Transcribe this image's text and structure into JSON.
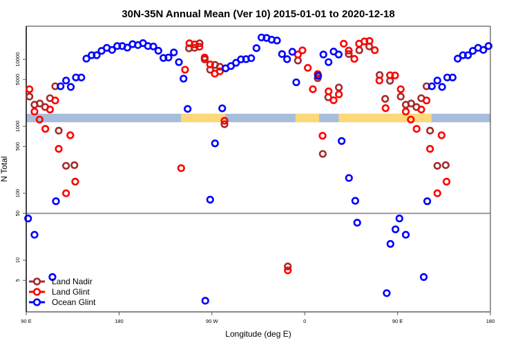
{
  "chart_data": {
    "type": "scatter",
    "title": "30N-35N Annual Mean (Ver 10)   2015-01-01 to 2020-12-18",
    "xlabel": "Longitude (deg E)",
    "ylabel": "N Total",
    "x_scale": "longitude, wrapping from 90 E eastward through 180 to 180 (450 degrees shown)",
    "xlim_deg_east_unwrapped": [
      90,
      540
    ],
    "x_ticks": [
      {
        "value": 90,
        "label": "90 E"
      },
      {
        "value": 180,
        "label": "180"
      },
      {
        "value": 270,
        "label": "90 W"
      },
      {
        "value": 360,
        "label": "0"
      },
      {
        "value": 450,
        "label": "90 E"
      },
      {
        "value": 540,
        "label": "180"
      }
    ],
    "y_scale": "log",
    "ylim": [
      1.69,
      31260
    ],
    "y_ticks": [
      {
        "value": 5,
        "label": "5"
      },
      {
        "value": 10,
        "label": "10"
      },
      {
        "value": 50,
        "label": "50"
      },
      {
        "value": 100,
        "label": "100"
      },
      {
        "value": 500,
        "label": "500"
      },
      {
        "value": 1000,
        "label": "1000"
      },
      {
        "value": 5000,
        "label": "5000"
      },
      {
        "value": 10000,
        "label": "10000"
      }
    ],
    "reference_line_y": 50,
    "grid": false,
    "legend_position": "bottom-left",
    "land_sea_strip": {
      "y_range": [
        1150,
        1540
      ],
      "ocean_color": "#a6bddb",
      "land_color": "#fdd878",
      "land_segments_lon": [
        [
          -120,
          -77
        ],
        [
          -9,
          14
        ],
        [
          33,
          123
        ]
      ]
    },
    "series": [
      {
        "name": "Land Nadir",
        "color": "#a52a2a",
        "points": [
          [
            93.1,
            2780
          ],
          [
            98.0,
            2100
          ],
          [
            103.2,
            2190
          ],
          [
            108.3,
            1940
          ],
          [
            113.0,
            2630
          ],
          [
            118.1,
            3960
          ],
          [
            121.5,
            861
          ],
          [
            128.6,
            257
          ],
          [
            136.7,
            263
          ],
          [
            -112.2,
            14620
          ],
          [
            -106.8,
            14860
          ],
          [
            -101.9,
            17390
          ],
          [
            -97.0,
            10000
          ],
          [
            -91.7,
            7000
          ],
          [
            -87.0,
            8270
          ],
          [
            -82.3,
            7760
          ],
          [
            -77.8,
            1074
          ],
          [
            -16.4,
            8.07
          ],
          [
            -6.6,
            9600
          ],
          [
            12.6,
            5230
          ],
          [
            17.5,
            387
          ],
          [
            22.8,
            2710
          ],
          [
            33.1,
            3800
          ],
          [
            42.7,
            12000
          ],
          [
            52.9,
            13710
          ],
          [
            62.6,
            15590
          ],
          [
            72.6,
            5840
          ],
          [
            78.0,
            2570
          ],
          [
            82.7,
            4790
          ]
        ]
      },
      {
        "name": "Land Glint",
        "color": "#ff0000",
        "points": [
          [
            93.1,
            3580
          ],
          [
            98.0,
            1660
          ],
          [
            102.9,
            1260
          ],
          [
            108.5,
            916
          ],
          [
            113.0,
            1780
          ],
          [
            118.1,
            2430
          ],
          [
            121.5,
            460
          ],
          [
            128.6,
            100
          ],
          [
            132.7,
            735
          ],
          [
            137.5,
            149
          ],
          [
            -119.8,
            237
          ],
          [
            -116.0,
            7000
          ],
          [
            -111.8,
            17390
          ],
          [
            -106.8,
            16740
          ],
          [
            -102.1,
            15440
          ],
          [
            -97.0,
            10660
          ],
          [
            -91.7,
            8410
          ],
          [
            -87.2,
            6120
          ],
          [
            -82.3,
            6630
          ],
          [
            -77.8,
            1208
          ],
          [
            -16.4,
            7.05
          ],
          [
            -6.6,
            11810
          ],
          [
            -2.2,
            13620
          ],
          [
            3.0,
            7470
          ],
          [
            7.9,
            3580
          ],
          [
            12.6,
            6030
          ],
          [
            17.3,
            722
          ],
          [
            23.1,
            3330
          ],
          [
            28.0,
            2450
          ],
          [
            33.1,
            3000
          ],
          [
            37.8,
            17140
          ],
          [
            42.7,
            13520
          ],
          [
            48.1,
            10170
          ],
          [
            52.7,
            17140
          ],
          [
            57.9,
            18530
          ],
          [
            62.8,
            18850
          ],
          [
            67.9,
            13710
          ],
          [
            72.4,
            4830
          ],
          [
            78.4,
            1867
          ],
          [
            82.7,
            5790
          ],
          [
            87.6,
            5750
          ]
        ]
      },
      {
        "name": "Ocean Glint",
        "color": "#0000ff",
        "points": [
          [
            91.8,
            42
          ],
          [
            98.0,
            24
          ],
          [
            115.4,
            5.6
          ],
          [
            118.8,
            76
          ],
          [
            123.3,
            3960
          ],
          [
            128.6,
            4830
          ],
          [
            133.2,
            3870
          ],
          [
            138.2,
            5360
          ],
          [
            143.4,
            5360
          ],
          [
            148.3,
            10240
          ],
          [
            153.4,
            11530
          ],
          [
            158.3,
            11530
          ],
          [
            163.0,
            13390
          ],
          [
            168.1,
            14860
          ],
          [
            173.2,
            13840
          ],
          [
            178.2,
            15810
          ],
          [
            -176.9,
            15810
          ],
          [
            -172.0,
            14970
          ],
          [
            -166.9,
            16860
          ],
          [
            -161.7,
            16340
          ],
          [
            -156.8,
            17470
          ],
          [
            -152.0,
            15810
          ],
          [
            -146.8,
            15590
          ],
          [
            -141.9,
            13450
          ],
          [
            -137.0,
            10490
          ],
          [
            -132.1,
            10660
          ],
          [
            -126.9,
            12680
          ],
          [
            -122.0,
            9090
          ],
          [
            -117.5,
            5150
          ],
          [
            -113.5,
            1820
          ],
          [
            -96.4,
            2.48
          ],
          [
            -91.7,
            80.2
          ],
          [
            -87.0,
            556
          ],
          [
            -80.0,
            1854
          ],
          [
            -76.7,
            7350
          ],
          [
            -71.6,
            7940
          ],
          [
            -66.6,
            8880
          ],
          [
            -61.8,
            10000
          ],
          [
            -56.9,
            10070
          ],
          [
            -51.9,
            10410
          ],
          [
            -46.8,
            14720
          ],
          [
            -41.9,
            21230
          ],
          [
            -37.0,
            20890
          ],
          [
            -32.1,
            19680
          ],
          [
            -26.9,
            19110
          ],
          [
            -22.0,
            12000
          ],
          [
            -17.1,
            10070
          ],
          [
            -12.0,
            12980
          ],
          [
            -8.2,
            4540
          ],
          [
            13.0,
            5660
          ],
          [
            18.1,
            11810
          ],
          [
            23.1,
            9090
          ],
          [
            28.0,
            13080
          ],
          [
            32.9,
            11810
          ],
          [
            35.8,
            603
          ],
          [
            42.9,
            169
          ],
          [
            49.0,
            77.1
          ],
          [
            50.9,
            36.3
          ],
          [
            79.5,
            3.22
          ],
          [
            83.1,
            17.5
          ],
          [
            88.0,
            28.9
          ]
        ]
      }
    ]
  }
}
